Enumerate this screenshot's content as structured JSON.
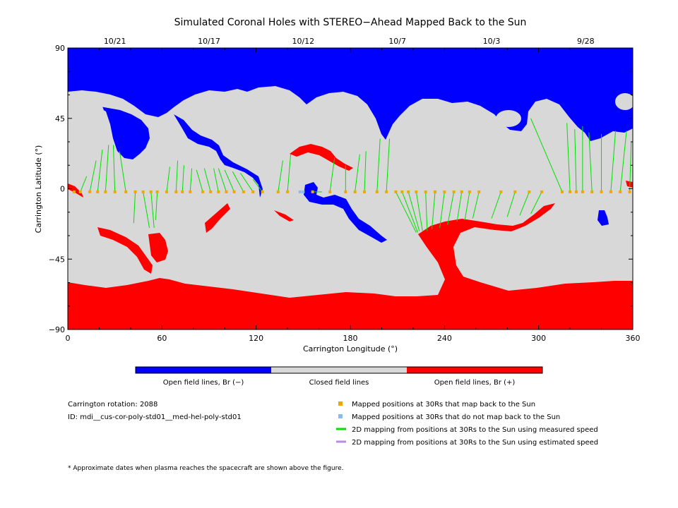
{
  "chart_data": {
    "type": "map",
    "title": "Simulated Coronal Holes with STEREO−Ahead Mapped Back to the Sun",
    "xlabel": "Carrington Longitude (°)",
    "ylabel": "Carrington Latitude (°)",
    "xlim": [
      0,
      360
    ],
    "ylim": [
      -90,
      90
    ],
    "x_ticks": [
      "0",
      "60",
      "120",
      "180",
      "240",
      "300",
      "360"
    ],
    "y_ticks": [
      "90",
      "45",
      "0",
      "−45",
      "−90"
    ],
    "date_ticks": [
      {
        "label": "10/21",
        "lon": 30
      },
      {
        "label": "10/17",
        "lon": 90
      },
      {
        "label": "10/12",
        "lon": 150
      },
      {
        "label": "10/7",
        "lon": 210
      },
      {
        "label": "10/3",
        "lon": 270
      },
      {
        "label": "9/28",
        "lon": 330
      }
    ],
    "colors": {
      "open_negative": "#0000ff",
      "closed": "#d8d8d8",
      "open_positive": "#ff0000",
      "mapped": "#f0a800",
      "unmapped": "#88bbee",
      "measured_speed_line": "#00e000",
      "estimated_speed_line": "#b88ce0"
    },
    "colorbar": [
      {
        "label": "Open field lines, Br (−)",
        "color": "#0000ff"
      },
      {
        "label": "Closed field lines",
        "color": "#d8d8d8"
      },
      {
        "label": "Open field lines, Br (+)",
        "color": "#ff0000"
      }
    ],
    "mapped_points": [
      {
        "lon": 4,
        "lat": -2,
        "sun_lon": 4,
        "sun_lat": -2
      },
      {
        "lon": 8,
        "lat": -2,
        "sun_lon": 12,
        "sun_lat": 8
      },
      {
        "lon": 14,
        "lat": -2,
        "sun_lon": 18,
        "sun_lat": 18
      },
      {
        "lon": 19,
        "lat": -2,
        "sun_lon": 22,
        "sun_lat": 25
      },
      {
        "lon": 24,
        "lat": -2,
        "sun_lon": 26,
        "sun_lat": 28
      },
      {
        "lon": 30,
        "lat": -2,
        "sun_lon": 29,
        "sun_lat": 28
      },
      {
        "lon": 37,
        "lat": -2,
        "sun_lon": 33,
        "sun_lat": 24
      },
      {
        "lon": 43,
        "lat": -2,
        "sun_lon": 42,
        "sun_lat": -22
      },
      {
        "lon": 48,
        "lat": -2,
        "sun_lon": 52,
        "sun_lat": -25
      },
      {
        "lon": 53,
        "lat": -2,
        "sun_lon": 55,
        "sun_lat": -25
      },
      {
        "lon": 57,
        "lat": -2,
        "sun_lon": 56,
        "sun_lat": -20
      },
      {
        "lon": 63,
        "lat": -2,
        "sun_lon": 65,
        "sun_lat": 14
      },
      {
        "lon": 69,
        "lat": -2,
        "sun_lon": 70,
        "sun_lat": 18
      },
      {
        "lon": 73,
        "lat": -2,
        "sun_lon": 74,
        "sun_lat": 15
      },
      {
        "lon": 78,
        "lat": -2,
        "sun_lon": 79,
        "sun_lat": 13
      },
      {
        "lon": 86,
        "lat": -2,
        "sun_lon": 82,
        "sun_lat": 12
      },
      {
        "lon": 91,
        "lat": -2,
        "sun_lon": 87,
        "sun_lat": 13
      },
      {
        "lon": 96,
        "lat": -2,
        "sun_lon": 93,
        "sun_lat": 13
      },
      {
        "lon": 101,
        "lat": -2,
        "sun_lon": 96,
        "sun_lat": 13
      },
      {
        "lon": 106,
        "lat": -2,
        "sun_lon": 100,
        "sun_lat": 12
      },
      {
        "lon": 112,
        "lat": -2,
        "sun_lon": 105,
        "sun_lat": 11
      },
      {
        "lon": 118,
        "lat": -2,
        "sun_lon": 110,
        "sun_lat": 10
      },
      {
        "lon": 124,
        "lat": -2,
        "sun_lon": 118,
        "sun_lat": 6
      },
      {
        "lon": 134,
        "lat": -2,
        "sun_lon": 137,
        "sun_lat": 18
      },
      {
        "lon": 140,
        "lat": -2,
        "sun_lon": 142,
        "sun_lat": 22
      },
      {
        "lon": 156,
        "lat": -2,
        "sun_lon": 162,
        "sun_lat": -2
      },
      {
        "lon": 167,
        "lat": -2,
        "sun_lon": 170,
        "sun_lat": 20
      },
      {
        "lon": 177,
        "lat": -2,
        "sun_lon": 177,
        "sun_lat": 15
      },
      {
        "lon": 183,
        "lat": -2,
        "sun_lon": 186,
        "sun_lat": 22
      },
      {
        "lon": 189,
        "lat": -2,
        "sun_lon": 190,
        "sun_lat": 24
      },
      {
        "lon": 197,
        "lat": -2,
        "sun_lon": 199,
        "sun_lat": 32
      },
      {
        "lon": 203,
        "lat": -2,
        "sun_lon": 205,
        "sun_lat": 32
      },
      {
        "lon": 209,
        "lat": -2,
        "sun_lon": 222,
        "sun_lat": -28
      },
      {
        "lon": 213,
        "lat": -2,
        "sun_lon": 223,
        "sun_lat": -28
      },
      {
        "lon": 217,
        "lat": -2,
        "sun_lon": 224,
        "sun_lat": -27
      },
      {
        "lon": 222,
        "lat": -2,
        "sun_lon": 226,
        "sun_lat": -27
      },
      {
        "lon": 228,
        "lat": -2,
        "sun_lon": 229,
        "sun_lat": -27
      },
      {
        "lon": 234,
        "lat": -2,
        "sun_lon": 232,
        "sun_lat": -26
      },
      {
        "lon": 240,
        "lat": -2,
        "sun_lon": 237,
        "sun_lat": -25
      },
      {
        "lon": 246,
        "lat": -2,
        "sun_lon": 242,
        "sun_lat": -23
      },
      {
        "lon": 251,
        "lat": -2,
        "sun_lon": 248,
        "sun_lat": -21
      },
      {
        "lon": 256,
        "lat": -2,
        "sun_lon": 253,
        "sun_lat": -20
      },
      {
        "lon": 262,
        "lat": -2,
        "sun_lon": 258,
        "sun_lat": -19
      },
      {
        "lon": 276,
        "lat": -2,
        "sun_lon": 270,
        "sun_lat": -19
      },
      {
        "lon": 285,
        "lat": -2,
        "sun_lon": 280,
        "sun_lat": -18
      },
      {
        "lon": 294,
        "lat": -2,
        "sun_lon": 288,
        "sun_lat": -17
      },
      {
        "lon": 302,
        "lat": -2,
        "sun_lon": 295,
        "sun_lat": -16
      },
      {
        "lon": 315,
        "lat": -2,
        "sun_lon": 295,
        "sun_lat": 45
      },
      {
        "lon": 320,
        "lat": -2,
        "sun_lon": 318,
        "sun_lat": 42
      },
      {
        "lon": 324,
        "lat": -2,
        "sun_lon": 323,
        "sun_lat": 38
      },
      {
        "lon": 328,
        "lat": -2,
        "sun_lon": 328,
        "sun_lat": 40
      },
      {
        "lon": 334,
        "lat": -2,
        "sun_lon": 332,
        "sun_lat": 36
      },
      {
        "lon": 340,
        "lat": -2,
        "sun_lon": 340,
        "sun_lat": 35
      },
      {
        "lon": 346,
        "lat": -2,
        "sun_lon": 349,
        "sun_lat": 37
      },
      {
        "lon": 352,
        "lat": -2,
        "sun_lon": 356,
        "sun_lat": 37
      },
      {
        "lon": 358,
        "lat": -2,
        "sun_lon": 359,
        "sun_lat": 30
      }
    ],
    "unmapped_points": [
      {
        "lon": 148,
        "lat": -2
      },
      {
        "lon": 150,
        "lat": -2
      }
    ]
  },
  "legend": [
    {
      "kind": "square",
      "color": "#f0a800",
      "label": "Mapped positions at 30Rs that map back to the Sun"
    },
    {
      "kind": "square",
      "color": "#88bbee",
      "label": "Mapped positions at 30Rs that do not map back to the Sun"
    },
    {
      "kind": "line",
      "color": "#00e000",
      "label": "2D mapping from positions at 30Rs to the Sun using measured speed"
    },
    {
      "kind": "line",
      "color": "#b88ce0",
      "label": "2D mapping from positions at 30Rs to the Sun using estimated speed"
    }
  ],
  "info": {
    "rotation": "Carrington rotation: 2088",
    "id": "ID: mdi__cus-cor-poly-std01__med-hel-poly-std01"
  },
  "footnote": "* Approximate dates when plasma reaches the spacecraft are shown above the figure."
}
